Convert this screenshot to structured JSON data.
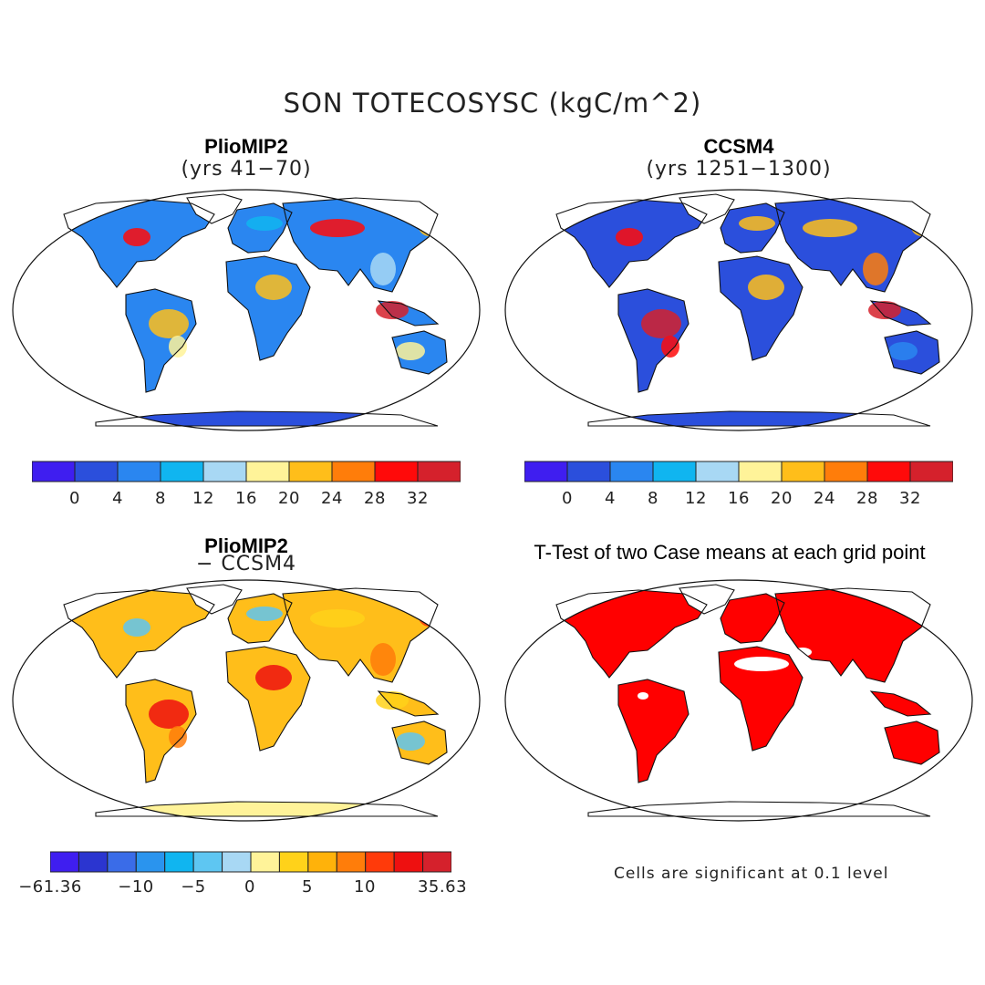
{
  "title": "SON TOTECOSYSC (kgC/m^2)",
  "panels": [
    {
      "id": "pliomip2",
      "title": "PlioMIP2",
      "subtitle": "(yrs 41−70)",
      "colorbar": {
        "colors": [
          "#3f1ef0",
          "#2b4fdc",
          "#2a86f0",
          "#10b5f0",
          "#a8d8f4",
          "#fff399",
          "#ffbe1a",
          "#ff7d0a",
          "#ff0a0a",
          "#d5212c"
        ],
        "tick_labels": [
          "0",
          "4",
          "8",
          "12",
          "16",
          "20",
          "24",
          "28",
          "32"
        ]
      }
    },
    {
      "id": "ccsm4",
      "title": "CCSM4",
      "subtitle": "(yrs 1251−1300)",
      "colorbar": {
        "colors": [
          "#3f1ef0",
          "#2b4fdc",
          "#2a86f0",
          "#10b5f0",
          "#a8d8f4",
          "#fff399",
          "#ffbe1a",
          "#ff7d0a",
          "#ff0a0a",
          "#d5212c"
        ],
        "tick_labels": [
          "0",
          "4",
          "8",
          "12",
          "16",
          "20",
          "24",
          "28",
          "32"
        ]
      }
    },
    {
      "id": "difference",
      "title": "PlioMIP2",
      "subtitle": "− CCSM4",
      "colorbar": {
        "colors": [
          "#3f1ef0",
          "#2b35d0",
          "#3a6ce8",
          "#2a94ee",
          "#10b5f0",
          "#5ec6f2",
          "#a8d8f4",
          "#fff399",
          "#ffd21a",
          "#ffb20a",
          "#ff7d0a",
          "#ff3a0a",
          "#ee1010",
          "#d5212c"
        ],
        "tick_labels": [
          "−61.36",
          "−10",
          "−5",
          "0",
          "5",
          "10",
          "35.63"
        ]
      }
    },
    {
      "id": "ttest",
      "title": "T-Test of two Case means at each grid point",
      "note": "Cells are significant at 0.1 level",
      "significant_color": "#ff0000"
    }
  ]
}
